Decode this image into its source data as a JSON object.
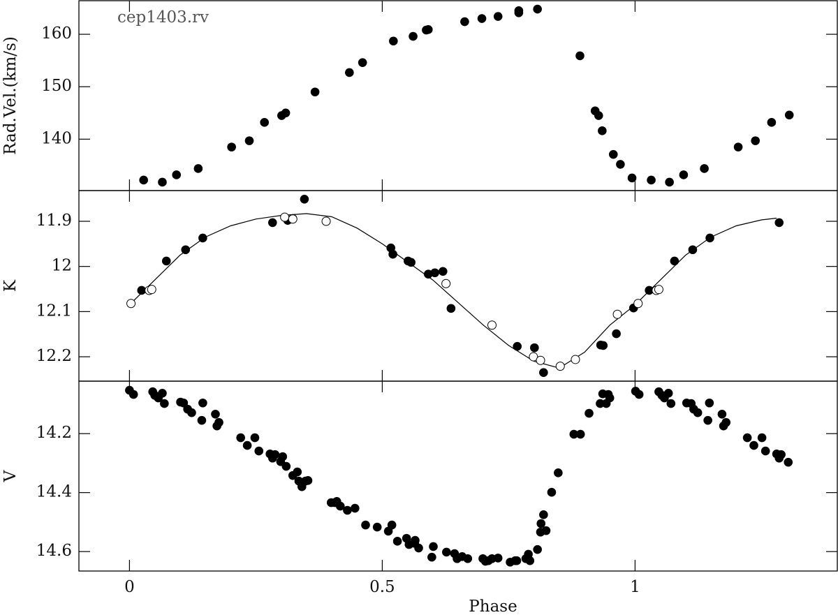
{
  "chart_data": [
    {
      "type": "scatter",
      "annotation": "cep1403.rv",
      "ylabel": "Rad.Vel.(km/s)",
      "xlim": [
        -0.1,
        1.4
      ],
      "xticks": [
        0,
        0.5,
        1
      ],
      "ylim": [
        130.2,
        166.4
      ],
      "yticks": [
        140,
        150,
        160
      ],
      "series": [
        {
          "color": "#000000",
          "marker": "filled",
          "x": [
            0.028,
            0.065,
            0.093,
            0.136,
            0.202,
            0.237,
            0.267,
            0.301,
            0.309,
            0.367,
            0.435,
            0.461,
            0.522,
            0.561,
            0.587,
            0.591,
            0.663,
            0.697,
            0.729,
            0.77,
            0.77,
            0.807,
            0.891,
            0.921,
            0.928,
            0.935,
            0.957,
            0.971,
            0.994,
            1.032,
            1.068,
            1.096,
            1.137,
            1.204,
            1.238,
            1.27,
            1.305
          ],
          "values": [
            132.2,
            131.8,
            133.2,
            134.4,
            138.5,
            139.7,
            143.2,
            144.5,
            145.0,
            149.0,
            152.7,
            154.6,
            158.7,
            159.6,
            160.8,
            160.9,
            162.4,
            163.0,
            163.4,
            164.1,
            164.5,
            164.8,
            155.9,
            145.4,
            144.5,
            141.6,
            137.1,
            135.2,
            132.6,
            132.2,
            131.8,
            133.2,
            134.4,
            138.5,
            139.7,
            143.2,
            144.6
          ]
        }
      ]
    },
    {
      "type": "scatter",
      "ylabel": "K",
      "xlim": [
        -0.1,
        1.4
      ],
      "xticks": [
        0,
        0.5,
        1
      ],
      "ylim": [
        12.254,
        11.832
      ],
      "yticks": [
        11.9,
        12,
        12.1,
        12.2
      ],
      "series": [
        {
          "color": "#000000",
          "marker": "line",
          "x": [
            0,
            0.05,
            0.1,
            0.15,
            0.2,
            0.25,
            0.3,
            0.35,
            0.4,
            0.45,
            0.5,
            0.55,
            0.6,
            0.65,
            0.7,
            0.75,
            0.8,
            0.85,
            0.9,
            0.95,
            1.0,
            1.05,
            1.1,
            1.15,
            1.2,
            1.25,
            1.28
          ],
          "values": [
            12.085,
            12.03,
            11.975,
            11.935,
            11.91,
            11.895,
            11.887,
            11.883,
            11.89,
            11.915,
            11.95,
            11.99,
            12.03,
            12.08,
            12.13,
            12.175,
            12.21,
            12.225,
            12.19,
            12.13,
            12.085,
            12.03,
            11.975,
            11.935,
            11.91,
            11.897,
            11.893
          ]
        },
        {
          "color": "#000000",
          "marker": "filled",
          "x": [
            0.024,
            0.073,
            0.111,
            0.145,
            0.283,
            0.313,
            0.323,
            0.346,
            0.517,
            0.521,
            0.551,
            0.557,
            0.591,
            0.604,
            0.62,
            0.636,
            0.767,
            0.801,
            0.819,
            0.932,
            0.937,
            0.963,
            0.997,
            1.028,
            1.078,
            1.114,
            1.148,
            1.285
          ],
          "values": [
            12.053,
            11.988,
            11.963,
            11.937,
            11.903,
            11.898,
            11.894,
            11.851,
            11.959,
            11.973,
            11.988,
            11.991,
            12.017,
            12.014,
            12.011,
            12.093,
            12.177,
            12.18,
            12.235,
            12.174,
            12.175,
            12.149,
            12.092,
            12.053,
            11.988,
            11.963,
            11.937,
            11.903
          ]
        },
        {
          "color": "#000000",
          "marker": "open",
          "x": [
            0.003,
            0.039,
            0.044,
            0.307,
            0.323,
            0.389,
            0.626,
            0.717,
            0.799,
            0.813,
            0.852,
            0.882,
            0.965,
            1.006,
            1.042,
            1.047
          ],
          "values": [
            12.082,
            12.053,
            12.051,
            11.891,
            11.895,
            11.9,
            12.038,
            12.13,
            12.2,
            12.208,
            12.221,
            12.206,
            12.106,
            12.082,
            12.053,
            12.051
          ]
        }
      ]
    },
    {
      "type": "scatter",
      "ylabel": "V",
      "xlabel": "Phase",
      "xlim": [
        -0.1,
        1.4
      ],
      "xticks": [
        0,
        0.5,
        1
      ],
      "ylim": [
        14.666,
        14.022
      ],
      "yticks": [
        14.2,
        14.4,
        14.6
      ],
      "series": [
        {
          "color": "#000000",
          "marker": "filled",
          "x": [
            0.0,
            0.008,
            0.046,
            0.05,
            0.057,
            0.065,
            0.069,
            0.101,
            0.107,
            0.115,
            0.123,
            0.143,
            0.145,
            0.17,
            0.173,
            0.177,
            0.22,
            0.233,
            0.248,
            0.256,
            0.278,
            0.283,
            0.288,
            0.299,
            0.303,
            0.31,
            0.323,
            0.332,
            0.335,
            0.341,
            0.348,
            0.353,
            0.399,
            0.406,
            0.41,
            0.417,
            0.431,
            0.446,
            0.467,
            0.49,
            0.512,
            0.519,
            0.53,
            0.548,
            0.553,
            0.564,
            0.572,
            0.565,
            0.598,
            0.601,
            0.627,
            0.643,
            0.648,
            0.658,
            0.669,
            0.699,
            0.704,
            0.71,
            0.717,
            0.729,
            0.753,
            0.763,
            0.766,
            0.784,
            0.789,
            0.792,
            0.807,
            0.813,
            0.814,
            0.819,
            0.824,
            0.835,
            0.848,
            0.879,
            0.892,
            0.909,
            0.931,
            0.936,
            0.943,
            0.947,
            0.95,
            1.001,
            1.008,
            1.047,
            1.053,
            1.058,
            1.066,
            1.071,
            1.102,
            1.111,
            1.116,
            1.124,
            1.144,
            1.147,
            1.172,
            1.175,
            1.18,
            1.222,
            1.235,
            1.251,
            1.258,
            1.28,
            1.285,
            1.289,
            1.303
          ],
          "values": [
            14.053,
            14.067,
            14.058,
            14.07,
            14.079,
            14.063,
            14.098,
            14.093,
            14.096,
            14.117,
            14.129,
            14.155,
            14.096,
            14.134,
            14.174,
            14.162,
            14.214,
            14.24,
            14.214,
            14.259,
            14.269,
            14.283,
            14.271,
            14.295,
            14.278,
            14.311,
            14.342,
            14.33,
            14.361,
            14.38,
            14.361,
            14.359,
            14.434,
            14.434,
            14.43,
            14.446,
            14.46,
            14.453,
            14.51,
            14.517,
            14.531,
            14.51,
            14.565,
            14.555,
            14.576,
            14.572,
            14.588,
            14.562,
            14.619,
            14.583,
            14.602,
            14.607,
            14.624,
            14.617,
            14.624,
            14.624,
            14.633,
            14.631,
            14.624,
            14.622,
            14.636,
            14.631,
            14.631,
            14.624,
            14.609,
            14.631,
            14.593,
            14.534,
            14.505,
            14.475,
            14.529,
            14.399,
            14.333,
            14.202,
            14.202,
            14.131,
            14.098,
            14.065,
            14.098,
            14.067,
            14.079,
            14.056,
            14.067,
            14.058,
            14.07,
            14.079,
            14.063,
            14.098,
            14.096,
            14.098,
            14.117,
            14.129,
            14.155,
            14.096,
            14.134,
            14.174,
            14.162,
            14.214,
            14.24,
            14.214,
            14.259,
            14.269,
            14.283,
            14.271,
            14.297
          ]
        }
      ]
    }
  ]
}
